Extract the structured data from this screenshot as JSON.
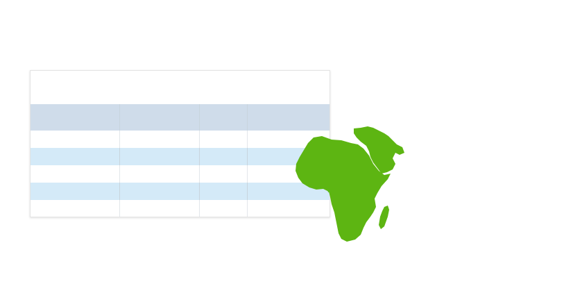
{
  "table": {
    "caption": "",
    "columns": [
      "",
      "",
      "",
      ""
    ],
    "rows": [
      [
        "",
        "",
        "",
        ""
      ],
      [
        "",
        "",
        "",
        ""
      ],
      [
        "",
        "",
        "",
        ""
      ],
      [
        "",
        "",
        "",
        ""
      ],
      [
        "",
        "",
        "",
        ""
      ]
    ]
  },
  "map": {
    "region": "africa-middle-east",
    "fill_color": "#5db512"
  },
  "colors": {
    "header_bg": "#cfdcea",
    "stripe_bg": "#d4eaf8",
    "border": "#e3e3e3"
  }
}
